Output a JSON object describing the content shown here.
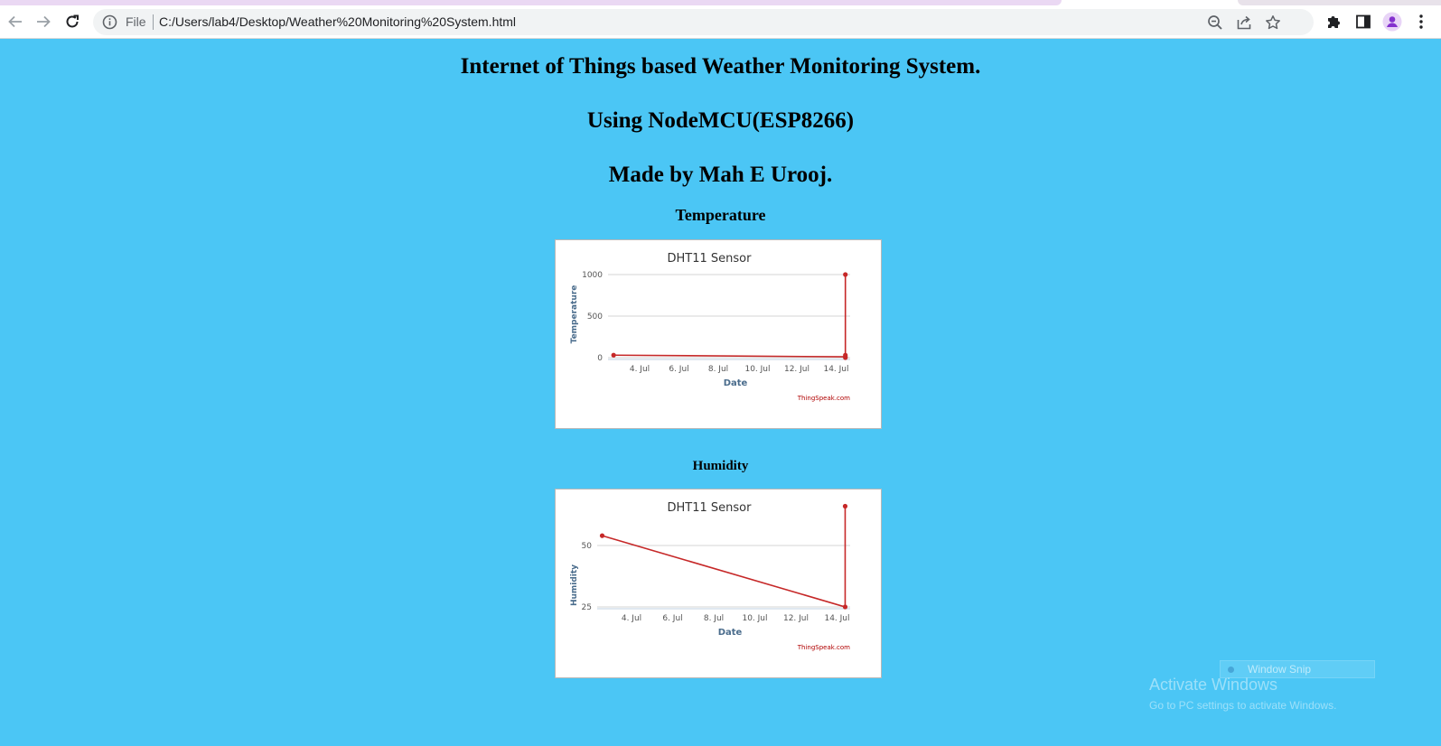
{
  "browser": {
    "file_label": "File",
    "url": "C:/Users/lab4/Desktop/Weather%20Monitoring%20System.html",
    "icons": [
      "back-arrow-icon",
      "forward-arrow-icon",
      "reload-icon",
      "info-icon",
      "zoom-out-icon",
      "share-icon",
      "star-icon",
      "extensions-puzzle-icon",
      "side-panel-icon",
      "profile-avatar-icon",
      "kebab-menu-icon"
    ],
    "colors": {
      "toolbar": "#ffffff",
      "omnibox": "#f1f3f4",
      "avatar": "#8430ce",
      "tab_active": "#ead8f3"
    }
  },
  "page": {
    "background": "#4bc6f5",
    "title_line1": "Internet of Things based Weather Monitoring System.",
    "title_line2": "Using NodeMCU(ESP8266)",
    "title_line3": "Made by Mah E Urooj.",
    "temperature_heading": "Temperature",
    "humidity_heading": "Humidity"
  },
  "chart_data": [
    {
      "type": "line",
      "title": "DHT11 Sensor",
      "xlabel": "Date",
      "ylabel": "Temperature",
      "credit": "ThingSpeak.com",
      "x_ticks": [
        "4. Jul",
        "6. Jul",
        "8. Jul",
        "10. Jul",
        "12. Jul",
        "14. Jul"
      ],
      "y_ticks": [
        0,
        500,
        1000
      ],
      "ylim": [
        0,
        1000
      ],
      "xlim": [
        "2023-07-02T18:00",
        "2023-07-15T10:00"
      ],
      "grid": true,
      "color": "#c62828",
      "points": [
        {
          "x": "2023-07-03T01:00",
          "y": 30
        },
        {
          "x": "2023-07-15T04:00",
          "y": 10
        },
        {
          "x": "2023-07-15T04:00",
          "y": 1000
        },
        {
          "x": "2023-07-15T04:00",
          "y": 30
        },
        {
          "x": "2023-07-15T04:00",
          "y": 0
        }
      ]
    },
    {
      "type": "line",
      "title": "DHT11 Sensor",
      "xlabel": "Date",
      "ylabel": "Humidity",
      "credit": "ThingSpeak.com",
      "x_ticks": [
        "4. Jul",
        "6. Jul",
        "8. Jul",
        "10. Jul",
        "12. Jul",
        "14. Jul"
      ],
      "y_ticks": [
        25,
        50
      ],
      "ylim": [
        25,
        50
      ],
      "xlim": [
        "2023-07-02T18:00",
        "2023-07-15T10:00"
      ],
      "grid": true,
      "color": "#c62828",
      "points": [
        {
          "x": "2023-07-03T00:00",
          "y": 54
        },
        {
          "x": "2023-07-15T04:00",
          "y": 25
        },
        {
          "x": "2023-07-15T04:00",
          "y": 66
        }
      ]
    }
  ],
  "watermark": {
    "snip_label": "Window Snip",
    "activate_title": "Activate Windows",
    "activate_sub": "Go to PC settings to activate Windows."
  }
}
